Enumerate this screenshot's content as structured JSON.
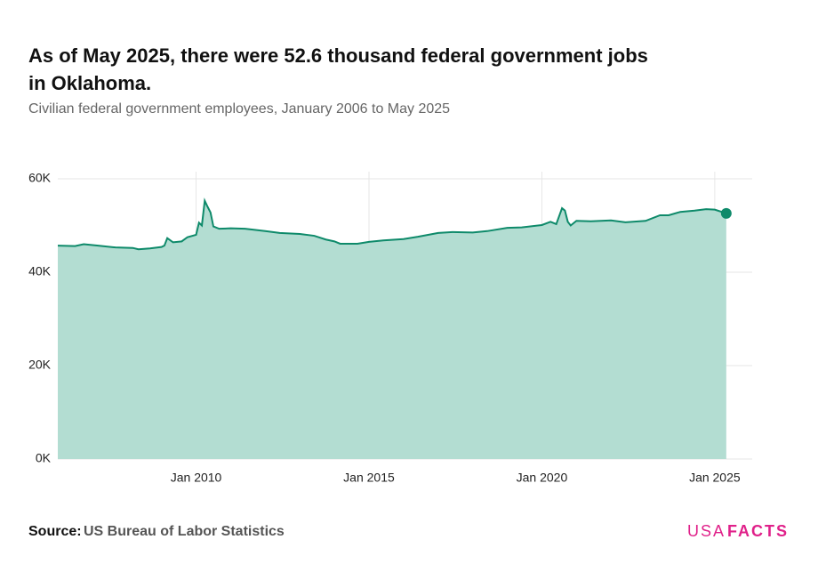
{
  "chart_data": {
    "type": "area",
    "title": "As of May 2025, there were 52.6 thousand federal government jobs in Oklahoma.",
    "subtitle": "Civilian federal government employees, January 2006 to May 2025",
    "x": [
      "2006-01",
      "2006-07",
      "2006-10",
      "2007-03",
      "2007-09",
      "2008-03",
      "2008-05",
      "2008-09",
      "2009-01",
      "2009-02",
      "2009-03",
      "2009-05",
      "2009-08",
      "2009-10",
      "2010-01",
      "2010-02",
      "2010-03",
      "2010-04",
      "2010-05",
      "2010-06",
      "2010-07",
      "2010-09",
      "2011-01",
      "2011-06",
      "2012-01",
      "2012-06",
      "2013-01",
      "2013-06",
      "2013-10",
      "2014-01",
      "2014-03",
      "2014-09",
      "2015-01",
      "2015-06",
      "2016-01",
      "2016-06",
      "2017-01",
      "2017-06",
      "2018-01",
      "2018-06",
      "2019-01",
      "2019-06",
      "2020-01",
      "2020-04",
      "2020-06",
      "2020-08",
      "2020-09",
      "2020-10",
      "2020-11",
      "2021-01",
      "2021-06",
      "2022-01",
      "2022-06",
      "2023-01",
      "2023-06",
      "2023-09",
      "2024-01",
      "2024-06",
      "2024-10",
      "2025-01",
      "2025-05"
    ],
    "series": [
      {
        "name": "Civilian federal government employees",
        "color": "#0e8a6a",
        "fill": "#b3ddd2",
        "values": [
          45700,
          45600,
          46000,
          45700,
          45300,
          45200,
          44900,
          45100,
          45400,
          45700,
          47300,
          46400,
          46600,
          47500,
          48000,
          50600,
          50000,
          55300,
          54000,
          52800,
          49800,
          49300,
          49400,
          49300,
          48800,
          48400,
          48200,
          47800,
          47000,
          46600,
          46100,
          46100,
          46500,
          46800,
          47100,
          47600,
          48400,
          48600,
          48500,
          48800,
          49500,
          49600,
          50100,
          50800,
          50300,
          53700,
          53200,
          50800,
          50000,
          51000,
          50900,
          51100,
          50700,
          51000,
          52200,
          52200,
          52900,
          53200,
          53500,
          53400,
          52600
        ]
      }
    ],
    "xlim": [
      "2006-01",
      "2026-02"
    ],
    "xticks": [
      {
        "value": "2010-01",
        "label": "Jan 2010"
      },
      {
        "value": "2015-01",
        "label": "Jan 2015"
      },
      {
        "value": "2020-01",
        "label": "Jan 2020"
      },
      {
        "value": "2025-01",
        "label": "Jan 2025"
      }
    ],
    "ylim": [
      0,
      60000
    ],
    "yticks": [
      {
        "value": 0,
        "label": "0K"
      },
      {
        "value": 20000,
        "label": "20K"
      },
      {
        "value": 40000,
        "label": "40K"
      },
      {
        "value": 60000,
        "label": "60K"
      }
    ],
    "grid": true
  },
  "footer": {
    "source_label": "Source:",
    "source": "US Bureau of Labor Statistics",
    "logo_a": "USA",
    "logo_b": "FACTS"
  }
}
